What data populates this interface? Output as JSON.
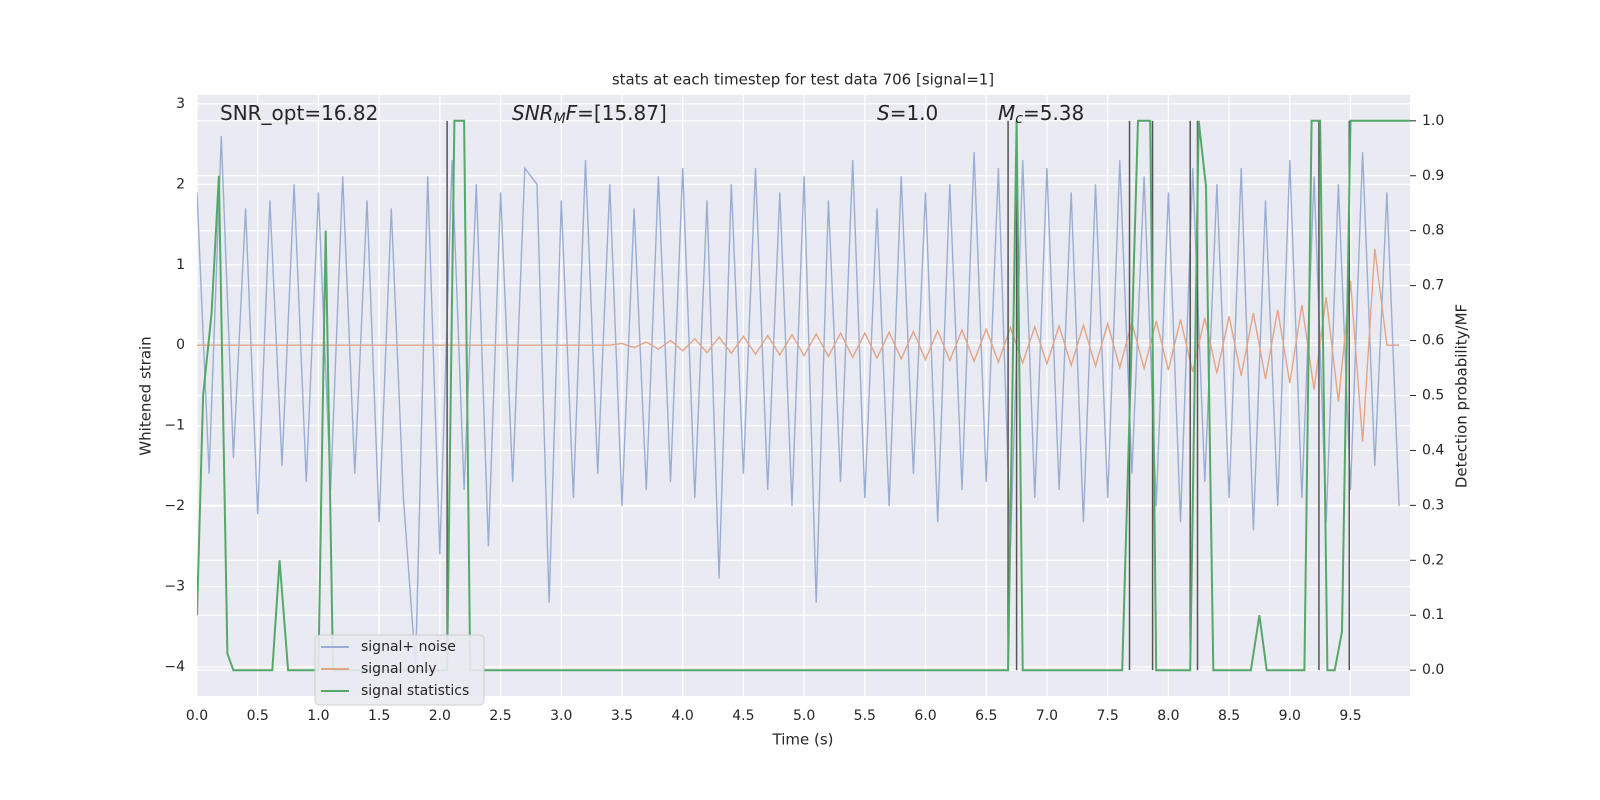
{
  "chart_data": {
    "type": "line",
    "title": "stats at each timestep for test data 706 [signal=1]",
    "xlabel": "Time (s)",
    "ylabel": "Whitened strain",
    "y2label": "Detection probability/MF",
    "xlim": [
      0,
      9.99
    ],
    "ylim": [
      -4.36,
      3.11
    ],
    "y2lim": [
      -0.047,
      1.047
    ],
    "xticks": [
      {
        "value": 0,
        "label": "0.0"
      },
      0.5,
      {
        "value": 1,
        "label": "1.0"
      },
      1.5,
      {
        "value": 2,
        "label": "2.0"
      },
      2.5,
      {
        "value": 3,
        "label": "3.0"
      },
      3.5,
      {
        "value": 4,
        "label": "4.0"
      },
      4.5,
      {
        "value": 5,
        "label": "5.0"
      },
      5.5,
      {
        "value": 6,
        "label": "6.0"
      },
      6.5,
      {
        "value": 7,
        "label": "7.0"
      },
      7.5,
      {
        "value": 8,
        "label": "8.0"
      },
      8.5,
      {
        "value": 9,
        "label": "9.0"
      },
      9.5
    ],
    "yticks": [
      {
        "value": -4,
        "label": "−4"
      },
      {
        "value": -3,
        "label": "−3"
      },
      {
        "value": -2,
        "label": "−2"
      },
      {
        "value": -1,
        "label": "−1"
      },
      0,
      1,
      2,
      3
    ],
    "y2ticks": [
      {
        "value": 0,
        "label": "0.0"
      },
      0.1,
      0.2,
      0.3,
      0.4,
      0.5,
      0.6,
      0.7,
      0.8,
      0.9,
      {
        "value": 1,
        "label": "1.0"
      }
    ],
    "grid": true,
    "legend": "lower left",
    "annotations": [
      {
        "parts": [
          {
            "t": "SNR_opt=16.82"
          }
        ]
      },
      {
        "parts": [
          {
            "t": "SNR",
            "style": "italic"
          },
          {
            "t": "M",
            "style": "sub"
          },
          {
            "t": "F",
            "style": "italic"
          },
          {
            "t": "=[15.87]"
          }
        ]
      },
      {
        "parts": [
          {
            "t": "S",
            "style": "italic"
          },
          {
            "t": "=1.0"
          }
        ]
      },
      {
        "parts": [
          {
            "t": "M",
            "style": "italic"
          },
          {
            "t": "c",
            "style": "sub"
          },
          {
            "t": "=5.38"
          }
        ]
      }
    ],
    "vlines": {
      "color": "#555555",
      "x": [
        2.06,
        6.68,
        6.75,
        7.68,
        7.87,
        8.18,
        8.24,
        9.24,
        9.49
      ]
    },
    "x": [
      0.0,
      0.1,
      0.2,
      0.3,
      0.4,
      0.5,
      0.6,
      0.7,
      0.8,
      0.9,
      1.0,
      1.1,
      1.2,
      1.3,
      1.4,
      1.5,
      1.6,
      1.7,
      1.8,
      1.9,
      2.0,
      2.1,
      2.2,
      2.3,
      2.4,
      2.5,
      2.6,
      2.7,
      2.8,
      2.9,
      3.0,
      3.1,
      3.2,
      3.3,
      3.4,
      3.5,
      3.6,
      3.7,
      3.8,
      3.9,
      4.0,
      4.1,
      4.2,
      4.3,
      4.4,
      4.5,
      4.6,
      4.7,
      4.8,
      4.9,
      5.0,
      5.1,
      5.2,
      5.3,
      5.4,
      5.5,
      5.6,
      5.7,
      5.8,
      5.9,
      6.0,
      6.1,
      6.2,
      6.3,
      6.4,
      6.5,
      6.6,
      6.7,
      6.8,
      6.9,
      7.0,
      7.1,
      7.2,
      7.3,
      7.4,
      7.5,
      7.6,
      7.7,
      7.8,
      7.9,
      8.0,
      8.1,
      8.2,
      8.3,
      8.4,
      8.5,
      8.6,
      8.7,
      8.8,
      8.9,
      9.0,
      9.1,
      9.2,
      9.3,
      9.4,
      9.5,
      9.6,
      9.7,
      9.8,
      9.9
    ],
    "series": [
      {
        "name": "signal+ noise",
        "color": "#9aaed3",
        "values": [
          1.9,
          -1.6,
          2.6,
          -1.4,
          1.7,
          -2.1,
          1.8,
          -1.5,
          2.0,
          -1.7,
          1.9,
          -1.8,
          2.1,
          -1.6,
          1.8,
          -2.2,
          1.7,
          -1.9,
          -4.0,
          2.1,
          -2.6,
          2.3,
          -1.8,
          2.0,
          -2.5,
          1.9,
          -1.7,
          2.2,
          2.0,
          -3.2,
          1.8,
          -1.9,
          2.3,
          -1.6,
          2.0,
          -2.0,
          1.7,
          -1.8,
          2.1,
          -1.7,
          2.2,
          -1.9,
          1.8,
          -2.9,
          2.0,
          -1.6,
          2.2,
          -1.8,
          1.9,
          -2.0,
          2.1,
          -3.2,
          1.8,
          -1.7,
          2.3,
          -1.9,
          1.7,
          -2.0,
          2.1,
          -1.6,
          1.9,
          -2.2,
          2.0,
          -1.8,
          2.4,
          -1.7,
          2.2,
          -2.5,
          2.3,
          -1.9,
          2.2,
          -1.8,
          1.9,
          -2.2,
          2.0,
          -1.9,
          2.3,
          -1.6,
          2.1,
          -2.0,
          1.9,
          -2.2,
          2.2,
          -1.7,
          2.0,
          -1.9,
          2.2,
          -2.3,
          1.8,
          -2.0,
          2.3,
          -1.9,
          2.1,
          -2.2,
          2.0,
          -1.8,
          2.4,
          -1.5,
          1.9,
          -2.0
        ]
      },
      {
        "name": "signal only",
        "color": "#e3a586",
        "values": [
          0,
          0,
          0,
          0,
          0,
          0,
          0,
          0,
          0,
          0,
          0,
          0,
          0,
          0,
          0,
          0,
          0,
          0,
          0,
          0,
          0,
          0,
          0,
          0,
          0,
          0,
          0,
          0,
          0,
          0,
          0,
          0,
          0,
          0,
          0,
          0.02,
          -0.03,
          0.04,
          -0.05,
          0.06,
          -0.07,
          0.08,
          -0.09,
          0.1,
          -0.1,
          0.11,
          -0.11,
          0.12,
          -0.12,
          0.13,
          -0.13,
          0.14,
          -0.14,
          0.15,
          -0.15,
          0.15,
          -0.16,
          0.16,
          -0.17,
          0.17,
          -0.18,
          0.18,
          -0.19,
          0.19,
          -0.2,
          0.2,
          -0.21,
          0.22,
          -0.22,
          0.23,
          -0.23,
          0.24,
          -0.25,
          0.25,
          -0.26,
          0.27,
          -0.28,
          0.28,
          -0.29,
          0.3,
          -0.31,
          0.32,
          -0.33,
          0.34,
          -0.35,
          0.36,
          -0.38,
          0.4,
          -0.42,
          0.44,
          -0.47,
          0.5,
          -0.55,
          0.6,
          -0.7,
          0.8,
          -1.2,
          1.2,
          0,
          0
        ]
      },
      {
        "name": "signal statistics",
        "color": "#55a868",
        "axis": "y2",
        "x": [
          0,
          0.05,
          0.12,
          0.18,
          0.25,
          0.3,
          0.62,
          0.68,
          0.75,
          1.0,
          1.06,
          1.12,
          2.06,
          2.12,
          2.2,
          2.25,
          6.68,
          6.75,
          6.8,
          7.62,
          7.75,
          7.85,
          7.9,
          8.18,
          8.25,
          8.31,
          8.37,
          8.68,
          8.75,
          8.81,
          9.12,
          9.18,
          9.25,
          9.31,
          9.37,
          9.43,
          9.5,
          9.99
        ],
        "values": [
          0.1,
          0.5,
          0.65,
          0.9,
          0.03,
          0,
          0,
          0.2,
          0,
          0,
          0.8,
          0,
          0,
          1,
          1,
          0,
          0,
          1,
          0,
          0,
          1,
          1,
          0,
          0,
          1,
          0.88,
          0,
          0,
          0.1,
          0,
          0,
          1,
          1,
          0,
          0,
          0.07,
          1,
          1
        ]
      }
    ]
  }
}
